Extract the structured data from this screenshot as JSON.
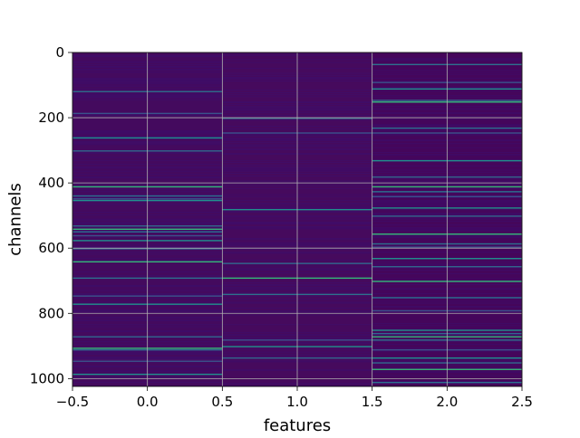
{
  "chart_data": {
    "type": "heatmap",
    "title": "",
    "xlabel": "features",
    "ylabel": "channels",
    "xlim": [
      -0.5,
      2.5
    ],
    "ylim": [
      1024,
      0
    ],
    "x_ticks": [
      "−0.5",
      "0.0",
      "0.5",
      "1.0",
      "1.5",
      "2.0",
      "2.5"
    ],
    "x_tick_values": [
      -0.5,
      0.0,
      0.5,
      1.0,
      1.5,
      2.0,
      2.5
    ],
    "y_ticks": [
      "0",
      "200",
      "400",
      "600",
      "800",
      "1000"
    ],
    "y_tick_values": [
      0,
      200,
      400,
      600,
      800,
      1000
    ],
    "grid": true,
    "colormap": "viridis",
    "columns": 3,
    "rows": 1024,
    "background_color": "#44065b",
    "column_base_colors": [
      "#440a5e",
      "#460a5d",
      "#45065b"
    ],
    "bright_rows": {
      "feature_0": [
        118,
        185,
        260,
        300,
        410,
        438,
        447,
        452,
        530,
        540,
        548,
        560,
        575,
        600,
        640,
        690,
        745,
        770,
        870,
        905,
        910,
        945,
        985
      ],
      "feature_1": [
        200,
        245,
        480,
        645,
        690,
        740,
        880,
        900,
        935
      ],
      "feature_2": [
        35,
        90,
        110,
        145,
        150,
        230,
        245,
        330,
        380,
        410,
        425,
        440,
        475,
        500,
        555,
        585,
        595,
        630,
        655,
        700,
        750,
        790,
        850,
        860,
        870,
        880,
        910,
        935,
        950,
        970,
        1010
      ]
    }
  }
}
